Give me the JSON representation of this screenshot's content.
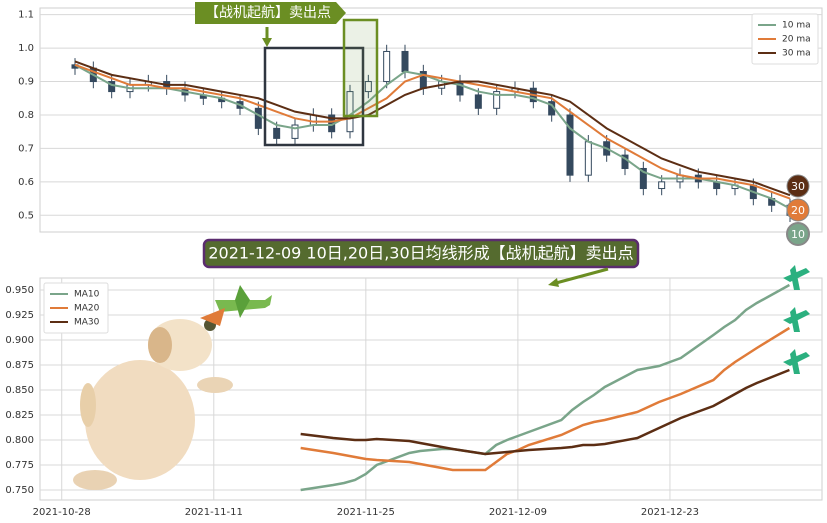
{
  "chart_data": [
    {
      "type": "candlestick",
      "color": "#34495e",
      "open": [
        0.95,
        0.94,
        0.9,
        0.87,
        0.89,
        0.9,
        0.88,
        0.86,
        0.85,
        0.84,
        0.82,
        0.76,
        0.73,
        0.77,
        0.8,
        0.75,
        0.87,
        0.9,
        0.99,
        0.93,
        0.88,
        0.9,
        0.86,
        0.82,
        0.87,
        0.88,
        0.84,
        0.8,
        0.62,
        0.72,
        0.68,
        0.64,
        0.58,
        0.6,
        0.62,
        0.6,
        0.58,
        0.59,
        0.55,
        0.53
      ],
      "high": [
        0.97,
        0.96,
        0.92,
        0.91,
        0.92,
        0.92,
        0.9,
        0.88,
        0.87,
        0.86,
        0.84,
        0.78,
        0.79,
        0.82,
        0.82,
        0.89,
        0.92,
        1.01,
        1.01,
        0.95,
        0.92,
        0.92,
        0.88,
        0.89,
        0.9,
        0.9,
        0.86,
        0.82,
        0.74,
        0.74,
        0.7,
        0.66,
        0.62,
        0.64,
        0.64,
        0.62,
        0.61,
        0.61,
        0.57,
        0.55
      ],
      "low": [
        0.92,
        0.88,
        0.85,
        0.85,
        0.87,
        0.86,
        0.84,
        0.83,
        0.82,
        0.8,
        0.74,
        0.71,
        0.71,
        0.75,
        0.73,
        0.73,
        0.85,
        0.88,
        0.91,
        0.86,
        0.86,
        0.84,
        0.8,
        0.8,
        0.85,
        0.82,
        0.78,
        0.6,
        0.6,
        0.66,
        0.62,
        0.56,
        0.56,
        0.58,
        0.58,
        0.56,
        0.56,
        0.53,
        0.51,
        0.48
      ],
      "close": [
        0.94,
        0.9,
        0.87,
        0.89,
        0.9,
        0.88,
        0.86,
        0.85,
        0.84,
        0.82,
        0.76,
        0.73,
        0.77,
        0.8,
        0.75,
        0.87,
        0.9,
        0.99,
        0.93,
        0.88,
        0.9,
        0.86,
        0.82,
        0.87,
        0.88,
        0.84,
        0.8,
        0.62,
        0.72,
        0.68,
        0.64,
        0.58,
        0.6,
        0.62,
        0.6,
        0.58,
        0.59,
        0.55,
        0.53,
        0.5
      ],
      "series": [
        {
          "name": "10 ma",
          "color": "#7aa58a",
          "values": [
            0.95,
            0.92,
            0.89,
            0.88,
            0.88,
            0.88,
            0.87,
            0.86,
            0.85,
            0.83,
            0.8,
            0.77,
            0.76,
            0.77,
            0.77,
            0.8,
            0.84,
            0.89,
            0.93,
            0.92,
            0.9,
            0.89,
            0.87,
            0.86,
            0.86,
            0.85,
            0.83,
            0.76,
            0.72,
            0.7,
            0.67,
            0.63,
            0.61,
            0.61,
            0.61,
            0.6,
            0.59,
            0.57,
            0.55,
            0.52
          ]
        },
        {
          "name": "20 ma",
          "color": "#e07b39",
          "values": [
            0.95,
            0.93,
            0.91,
            0.89,
            0.89,
            0.88,
            0.88,
            0.87,
            0.86,
            0.85,
            0.83,
            0.81,
            0.79,
            0.78,
            0.78,
            0.79,
            0.82,
            0.85,
            0.9,
            0.92,
            0.91,
            0.9,
            0.89,
            0.88,
            0.87,
            0.86,
            0.85,
            0.81,
            0.77,
            0.73,
            0.7,
            0.67,
            0.64,
            0.62,
            0.61,
            0.61,
            0.6,
            0.59,
            0.57,
            0.55
          ]
        },
        {
          "name": "30 ma",
          "color": "#5c2e14",
          "values": [
            0.96,
            0.94,
            0.92,
            0.91,
            0.9,
            0.89,
            0.89,
            0.88,
            0.87,
            0.86,
            0.85,
            0.83,
            0.81,
            0.8,
            0.79,
            0.79,
            0.8,
            0.83,
            0.86,
            0.88,
            0.89,
            0.9,
            0.9,
            0.89,
            0.88,
            0.87,
            0.86,
            0.84,
            0.8,
            0.76,
            0.73,
            0.7,
            0.67,
            0.65,
            0.63,
            0.62,
            0.61,
            0.6,
            0.58,
            0.56
          ]
        }
      ],
      "ylim": [
        0.45,
        1.12
      ],
      "yticks": [
        0.5,
        0.6,
        0.7,
        0.8,
        0.9,
        {
          "value": 1,
          "label": "1.0"
        },
        1.1
      ],
      "grid": true,
      "legend": "upper right",
      "annotation": "【战机起航】卖出点",
      "end_labels": [
        "10",
        "20",
        "30"
      ]
    },
    {
      "type": "line",
      "title": "2021-12-09 10日,20日,30日均线形成【战机起航】卖出点",
      "x": [
        "2021-11-19",
        "2021-11-22",
        "2021-11-23",
        "2021-11-24",
        "2021-11-25",
        "2021-11-26",
        "2021-11-29",
        "2021-11-30",
        "2021-12-01",
        "2021-12-02",
        "2021-12-03",
        "2021-12-06",
        "2021-12-07",
        "2021-12-08",
        "2021-12-09",
        "2021-12-10",
        "2021-12-13",
        "2021-12-14",
        "2021-12-15",
        "2021-12-16",
        "2021-12-17",
        "2021-12-20",
        "2021-12-21",
        "2021-12-22",
        "2021-12-23",
        "2021-12-24",
        "2021-12-27",
        "2021-12-28",
        "2021-12-29",
        "2021-12-30",
        "2021-12-31",
        "2022-01-03"
      ],
      "series": [
        {
          "name": "MA10",
          "color": "#7aa58a",
          "values": [
            0.75,
            0.755,
            0.757,
            0.76,
            0.766,
            0.775,
            0.787,
            0.789,
            0.79,
            0.791,
            0.791,
            0.786,
            0.795,
            0.8,
            0.804,
            0.808,
            0.82,
            0.83,
            0.838,
            0.845,
            0.853,
            0.87,
            0.872,
            0.874,
            0.878,
            0.882,
            0.905,
            0.913,
            0.92,
            0.93,
            0.937,
            0.955
          ]
        },
        {
          "name": "MA20",
          "color": "#e07b39",
          "values": [
            0.792,
            0.787,
            0.785,
            0.783,
            0.781,
            0.78,
            0.778,
            0.776,
            0.774,
            0.772,
            0.77,
            0.77,
            0.778,
            0.786,
            0.79,
            0.795,
            0.805,
            0.81,
            0.815,
            0.818,
            0.82,
            0.828,
            0.833,
            0.838,
            0.842,
            0.846,
            0.86,
            0.87,
            0.878,
            0.885,
            0.892,
            0.912
          ]
        },
        {
          "name": "MA30",
          "color": "#5c2e14",
          "values": [
            0.806,
            0.802,
            0.801,
            0.8,
            0.8,
            0.801,
            0.799,
            0.797,
            0.795,
            0.793,
            0.791,
            0.786,
            0.787,
            0.788,
            0.789,
            0.79,
            0.792,
            0.793,
            0.795,
            0.795,
            0.796,
            0.802,
            0.807,
            0.812,
            0.817,
            0.822,
            0.834,
            0.84,
            0.846,
            0.852,
            0.857,
            0.87
          ]
        }
      ],
      "xlim": [
        "2021-10-26",
        "2022-01-06"
      ],
      "xticks": [
        "2021-10-28",
        "2021-11-11",
        "2021-11-25",
        "2021-12-09",
        "2021-12-23"
      ],
      "ylim": [
        0.74,
        0.962
      ],
      "yticks": [
        {
          "value": 0.75,
          "label": "0.750"
        },
        {
          "value": 0.775,
          "label": "0.775"
        },
        {
          "value": 0.8,
          "label": "0.800"
        },
        {
          "value": 0.825,
          "label": "0.825"
        },
        {
          "value": 0.85,
          "label": "0.850"
        },
        {
          "value": 0.875,
          "label": "0.875"
        },
        {
          "value": 0.9,
          "label": "0.900"
        },
        {
          "value": 0.925,
          "label": "0.925"
        },
        {
          "value": 0.95,
          "label": "0.950"
        }
      ],
      "grid": true,
      "legend": "upper left"
    }
  ]
}
